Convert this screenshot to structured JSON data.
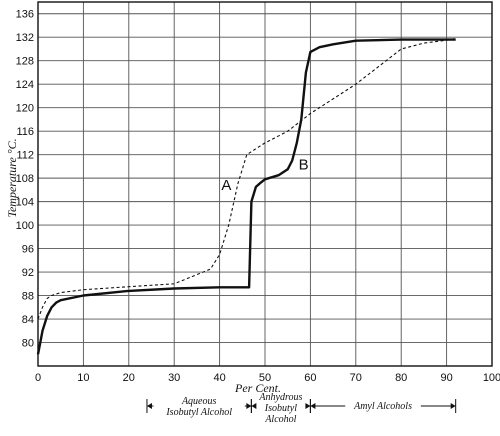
{
  "chart_data": {
    "type": "line",
    "xlabel": "Per Cent.",
    "ylabel": "Temperature °C.",
    "xlim": [
      0,
      100
    ],
    "ylim": [
      76,
      138
    ],
    "grid": true,
    "x_ticks": [
      0,
      10,
      20,
      30,
      40,
      50,
      60,
      70,
      80,
      90,
      100
    ],
    "y_ticks": [
      80,
      84,
      88,
      92,
      96,
      100,
      104,
      108,
      112,
      116,
      120,
      124,
      128,
      132,
      136
    ],
    "series": [
      {
        "name": "A",
        "style": "dashed",
        "x": [
          0,
          1,
          2,
          3,
          5,
          10,
          20,
          30,
          38,
          40,
          42,
          44,
          46,
          50,
          55,
          60,
          65,
          70,
          75,
          80,
          85,
          90,
          92
        ],
        "y": [
          84,
          86,
          87.5,
          88,
          88.5,
          89,
          89.5,
          90,
          92.5,
          95,
          100,
          107,
          112,
          114,
          116,
          119,
          121.5,
          124,
          127,
          130,
          131,
          131.5,
          131.8
        ]
      },
      {
        "name": "B",
        "style": "solid",
        "x": [
          0,
          0.5,
          1,
          2,
          3,
          4,
          5,
          10,
          20,
          30,
          40,
          45,
          46.5,
          47,
          48,
          49,
          50,
          53,
          55,
          56,
          57,
          58,
          59,
          60,
          62,
          65,
          70,
          80,
          90,
          92
        ],
        "y": [
          78,
          80,
          82,
          84.5,
          86,
          86.8,
          87.2,
          88,
          88.8,
          89.2,
          89.4,
          89.4,
          89.4,
          104,
          106.5,
          107.2,
          107.8,
          108.5,
          109.5,
          111,
          114,
          118,
          126,
          129.5,
          130.3,
          130.8,
          131.4,
          131.6,
          131.6,
          131.6
        ]
      }
    ],
    "annotations": [
      {
        "text": "A",
        "x": 41.5,
        "y": 106
      },
      {
        "text": "B",
        "x": 58.5,
        "y": 109.5
      }
    ],
    "ranges": [
      {
        "from": 24,
        "to": 47,
        "lines": [
          "Aqueous",
          "Isobutyl Alcohol"
        ]
      },
      {
        "from": 47,
        "to": 60,
        "lines": [
          "Anhydrous",
          "Isobutyl",
          "Alcohol"
        ]
      },
      {
        "from": 60,
        "to": 92,
        "lines": [
          "Amyl Alcohols"
        ]
      }
    ]
  }
}
